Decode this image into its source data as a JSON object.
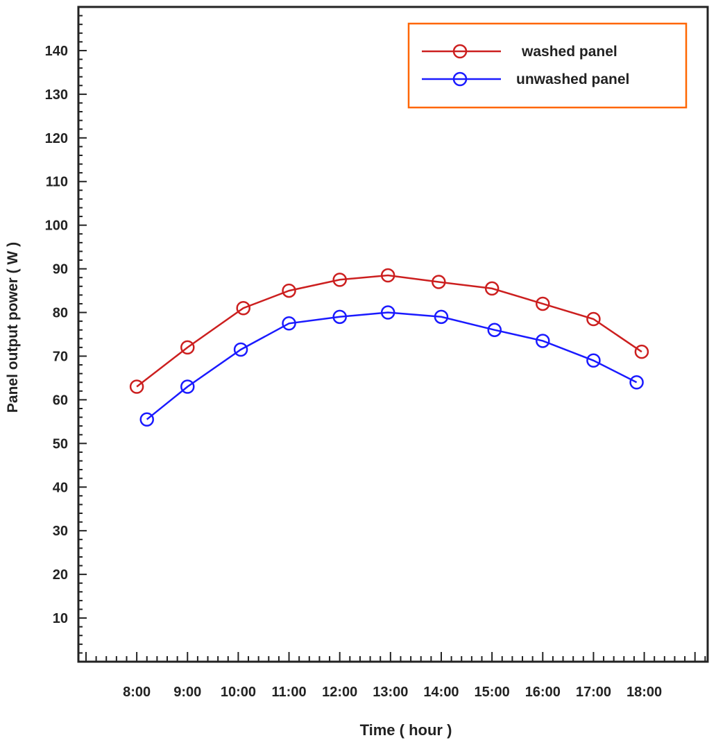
{
  "chart_data": {
    "type": "line",
    "title": "",
    "xlabel": "Time ( hour )",
    "ylabel": "Panel output power ( W )",
    "x_tick_labels": [
      "8:00",
      "9:00",
      "10:00",
      "11:00",
      "12:00",
      "13:00",
      "14:00",
      "15:00",
      "16:00",
      "17:00",
      "18:00"
    ],
    "x_range": [
      6.85,
      19.25
    ],
    "y_ticks": [
      10,
      20,
      30,
      40,
      50,
      60,
      70,
      80,
      90,
      100,
      110,
      120,
      130,
      140
    ],
    "ylim": [
      0,
      150
    ],
    "grid": false,
    "legend_position": "top-right",
    "marker": "open-circle",
    "series": [
      {
        "name": "washed panel",
        "color": "#cc1f1f",
        "x": [
          8.0,
          9.0,
          10.1,
          11.0,
          12.0,
          12.95,
          13.95,
          15.0,
          16.0,
          17.0,
          17.95
        ],
        "y": [
          63,
          72,
          81,
          85,
          87.5,
          88.5,
          87,
          85.5,
          82,
          78.5,
          71
        ]
      },
      {
        "name": "unwashed panel",
        "color": "#1a1aff",
        "x": [
          8.2,
          9.0,
          10.05,
          11.0,
          12.0,
          12.95,
          14.0,
          15.05,
          16.0,
          17.0,
          17.85
        ],
        "y": [
          55.5,
          63,
          71.5,
          77.5,
          79,
          80,
          79,
          76,
          73.5,
          69,
          64
        ]
      }
    ],
    "colors": {
      "axis": "#222222",
      "legend_border": "#ff6600"
    }
  }
}
